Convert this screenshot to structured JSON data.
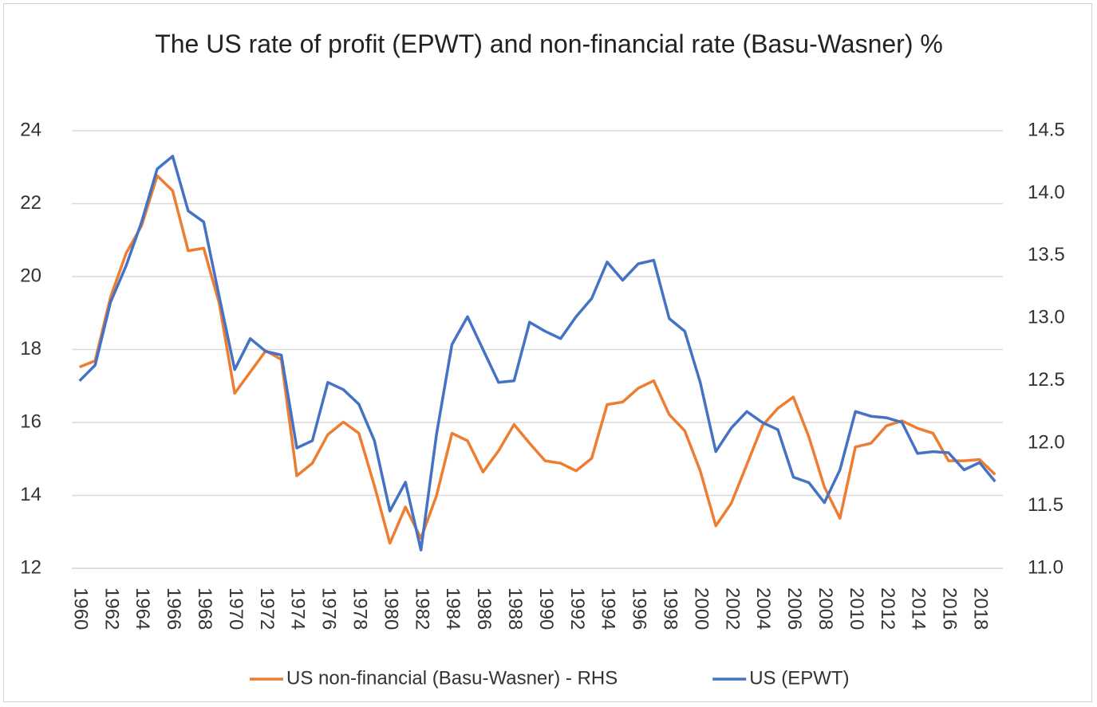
{
  "chart_data": {
    "type": "line",
    "title": "The US rate of profit (EPWT) and non-financial rate (Basu-Wasner) %",
    "x": [
      1960,
      1961,
      1962,
      1963,
      1964,
      1965,
      1966,
      1967,
      1968,
      1969,
      1970,
      1971,
      1972,
      1973,
      1974,
      1975,
      1976,
      1977,
      1978,
      1979,
      1980,
      1981,
      1982,
      1983,
      1984,
      1985,
      1986,
      1987,
      1988,
      1989,
      1990,
      1991,
      1992,
      1993,
      1994,
      1995,
      1996,
      1997,
      1998,
      1999,
      2000,
      2001,
      2002,
      2003,
      2004,
      2005,
      2006,
      2007,
      2008,
      2009,
      2010,
      2011,
      2012,
      2013,
      2014,
      2015,
      2016,
      2017,
      2018,
      2019
    ],
    "xlim": [
      1959.5,
      2019.5
    ],
    "xticks": [
      1960,
      1962,
      1964,
      1966,
      1968,
      1970,
      1972,
      1974,
      1976,
      1978,
      1980,
      1982,
      1984,
      1986,
      1988,
      1990,
      1992,
      1994,
      1996,
      1998,
      2000,
      2002,
      2004,
      2006,
      2008,
      2010,
      2012,
      2014,
      2016,
      2018
    ],
    "ylim": [
      12,
      24
    ],
    "yticks": [
      12,
      14,
      16,
      18,
      20,
      22,
      24
    ],
    "y2lim": [
      11,
      14.5
    ],
    "y2ticks": [
      {
        "value": 11,
        "label": "11.0"
      },
      11.5,
      {
        "value": 12,
        "label": "12.0"
      },
      12.5,
      {
        "value": 13,
        "label": "13.0"
      },
      13.5,
      {
        "value": 14,
        "label": "14.0"
      },
      14.5
    ],
    "grid": true,
    "legend": "bottom",
    "series": [
      {
        "name": "US non-financial (Basu-Wasner) - RHS",
        "color": "#ed7d31",
        "axis": "y2",
        "values": [
          12.61,
          12.66,
          13.17,
          13.52,
          13.74,
          14.14,
          14.02,
          13.54,
          13.56,
          13.12,
          12.4,
          12.57,
          12.74,
          12.67,
          11.74,
          11.84,
          12.07,
          12.17,
          12.08,
          11.66,
          11.2,
          11.49,
          11.24,
          11.58,
          12.08,
          12.02,
          11.77,
          11.94,
          12.15,
          12.0,
          11.86,
          11.84,
          11.78,
          11.88,
          12.31,
          12.33,
          12.44,
          12.5,
          12.23,
          12.1,
          11.78,
          11.34,
          11.52,
          11.83,
          12.14,
          12.28,
          12.37,
          12.05,
          11.65,
          11.4,
          11.97,
          12.0,
          12.14,
          12.18,
          12.12,
          12.08,
          11.86,
          11.86,
          11.87,
          11.75
        ]
      },
      {
        "name": "US (EPWT)",
        "color": "#4472c4",
        "values": [
          17.14,
          17.57,
          19.3,
          20.3,
          21.5,
          22.95,
          23.3,
          21.8,
          21.5,
          19.45,
          17.45,
          18.3,
          17.95,
          17.85,
          15.3,
          15.5,
          17.1,
          16.9,
          16.5,
          15.5,
          13.57,
          14.36,
          12.5,
          15.67,
          18.14,
          18.9,
          18.0,
          17.1,
          17.14,
          18.75,
          18.5,
          18.3,
          18.9,
          19.4,
          20.4,
          19.9,
          20.35,
          20.45,
          18.85,
          18.5,
          17.1,
          15.2,
          15.85,
          16.3,
          16.0,
          15.8,
          14.5,
          14.35,
          13.8,
          14.7,
          16.3,
          16.17,
          16.13,
          16.0,
          15.15,
          15.2,
          15.17,
          14.7,
          14.9,
          14.38
        ]
      }
    ]
  }
}
